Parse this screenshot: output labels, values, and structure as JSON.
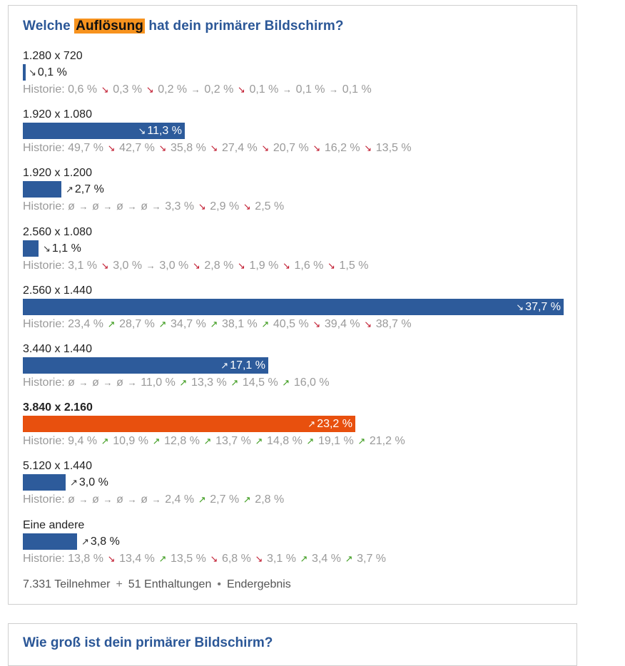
{
  "poll": {
    "title_pre": "Welche ",
    "title_highlight": "Auflösung",
    "title_post": " hat dein primärer Bildschirm?",
    "history_label": "Historie:",
    "options": [
      {
        "label": "1.280 x 720",
        "percent": 0.1,
        "value_text": "0,1 %",
        "trend": "down",
        "bold": false,
        "color": "#2d5b9b",
        "history": [
          {
            "v": "0,6 %",
            "t": "down"
          },
          {
            "v": "0,3 %",
            "t": "down"
          },
          {
            "v": "0,2 %",
            "t": "flat"
          },
          {
            "v": "0,2 %",
            "t": "down"
          },
          {
            "v": "0,1 %",
            "t": "flat"
          },
          {
            "v": "0,1 %",
            "t": "flat"
          },
          {
            "v": "0,1 %",
            "t": ""
          }
        ]
      },
      {
        "label": "1.920 x 1.080",
        "percent": 11.3,
        "value_text": "11,3 %",
        "trend": "down",
        "bold": false,
        "color": "#2d5b9b",
        "history": [
          {
            "v": "49,7 %",
            "t": "down"
          },
          {
            "v": "42,7 %",
            "t": "down"
          },
          {
            "v": "35,8 %",
            "t": "down"
          },
          {
            "v": "27,4 %",
            "t": "down"
          },
          {
            "v": "20,7 %",
            "t": "down"
          },
          {
            "v": "16,2 %",
            "t": "down"
          },
          {
            "v": "13,5 %",
            "t": ""
          }
        ]
      },
      {
        "label": "1.920 x 1.200",
        "percent": 2.7,
        "value_text": "2,7 %",
        "trend": "up",
        "bold": false,
        "color": "#2d5b9b",
        "history": [
          {
            "v": "ø",
            "t": "flat"
          },
          {
            "v": "ø",
            "t": "flat"
          },
          {
            "v": "ø",
            "t": "flat"
          },
          {
            "v": "ø",
            "t": "flat"
          },
          {
            "v": "3,3 %",
            "t": "down"
          },
          {
            "v": "2,9 %",
            "t": "down"
          },
          {
            "v": "2,5 %",
            "t": ""
          }
        ]
      },
      {
        "label": "2.560 x 1.080",
        "percent": 1.1,
        "value_text": "1,1 %",
        "trend": "down",
        "bold": false,
        "color": "#2d5b9b",
        "history": [
          {
            "v": "3,1 %",
            "t": "down"
          },
          {
            "v": "3,0 %",
            "t": "flat"
          },
          {
            "v": "3,0 %",
            "t": "down"
          },
          {
            "v": "2,8 %",
            "t": "down"
          },
          {
            "v": "1,9 %",
            "t": "down"
          },
          {
            "v": "1,6 %",
            "t": "down"
          },
          {
            "v": "1,5 %",
            "t": ""
          }
        ]
      },
      {
        "label": "2.560 x 1.440",
        "percent": 37.7,
        "value_text": "37,7 %",
        "trend": "down",
        "bold": false,
        "color": "#2d5b9b",
        "history": [
          {
            "v": "23,4 %",
            "t": "up"
          },
          {
            "v": "28,7 %",
            "t": "up"
          },
          {
            "v": "34,7 %",
            "t": "up"
          },
          {
            "v": "38,1 %",
            "t": "up"
          },
          {
            "v": "40,5 %",
            "t": "down"
          },
          {
            "v": "39,4 %",
            "t": "down"
          },
          {
            "v": "38,7 %",
            "t": ""
          }
        ]
      },
      {
        "label": "3.440 x 1.440",
        "percent": 17.1,
        "value_text": "17,1 %",
        "trend": "up",
        "bold": false,
        "color": "#2d5b9b",
        "history": [
          {
            "v": "ø",
            "t": "flat"
          },
          {
            "v": "ø",
            "t": "flat"
          },
          {
            "v": "ø",
            "t": "flat"
          },
          {
            "v": "11,0 %",
            "t": "up"
          },
          {
            "v": "13,3 %",
            "t": "up"
          },
          {
            "v": "14,5 %",
            "t": "up"
          },
          {
            "v": "16,0 %",
            "t": ""
          }
        ]
      },
      {
        "label": "3.840 x 2.160",
        "percent": 23.2,
        "value_text": "23,2 %",
        "trend": "up",
        "bold": true,
        "color": "#e8500e",
        "history": [
          {
            "v": "9,4 %",
            "t": "up"
          },
          {
            "v": "10,9 %",
            "t": "up"
          },
          {
            "v": "12,8 %",
            "t": "up"
          },
          {
            "v": "13,7 %",
            "t": "up"
          },
          {
            "v": "14,8 %",
            "t": "up"
          },
          {
            "v": "19,1 %",
            "t": "up"
          },
          {
            "v": "21,2 %",
            "t": ""
          }
        ]
      },
      {
        "label": "5.120 x 1.440",
        "percent": 3.0,
        "value_text": "3,0 %",
        "trend": "up",
        "bold": false,
        "color": "#2d5b9b",
        "history": [
          {
            "v": "ø",
            "t": "flat"
          },
          {
            "v": "ø",
            "t": "flat"
          },
          {
            "v": "ø",
            "t": "flat"
          },
          {
            "v": "ø",
            "t": "flat"
          },
          {
            "v": "2,4 %",
            "t": "up"
          },
          {
            "v": "2,7 %",
            "t": "up"
          },
          {
            "v": "2,8 %",
            "t": ""
          }
        ]
      },
      {
        "label": "Eine andere",
        "percent": 3.8,
        "value_text": "3,8 %",
        "trend": "up",
        "bold": false,
        "color": "#2d5b9b",
        "history": [
          {
            "v": "13,8 %",
            "t": "down"
          },
          {
            "v": "13,4 %",
            "t": "up"
          },
          {
            "v": "13,5 %",
            "t": "down"
          },
          {
            "v": "6,8 %",
            "t": "down"
          },
          {
            "v": "3,1 %",
            "t": "up"
          },
          {
            "v": "3,4 %",
            "t": "up"
          },
          {
            "v": "3,7 %",
            "t": ""
          }
        ]
      }
    ],
    "footer": {
      "participants": "7.331 Teilnehmer",
      "plus": "+",
      "abstentions": "51 Enthaltungen",
      "dot": "•",
      "status": "Endergebnis"
    }
  },
  "next_poll": {
    "title": "Wie groß ist dein primärer Bildschirm?"
  },
  "icons": {
    "down": "trend-down-icon",
    "up": "trend-up-icon",
    "flat": "trend-flat-icon"
  }
}
